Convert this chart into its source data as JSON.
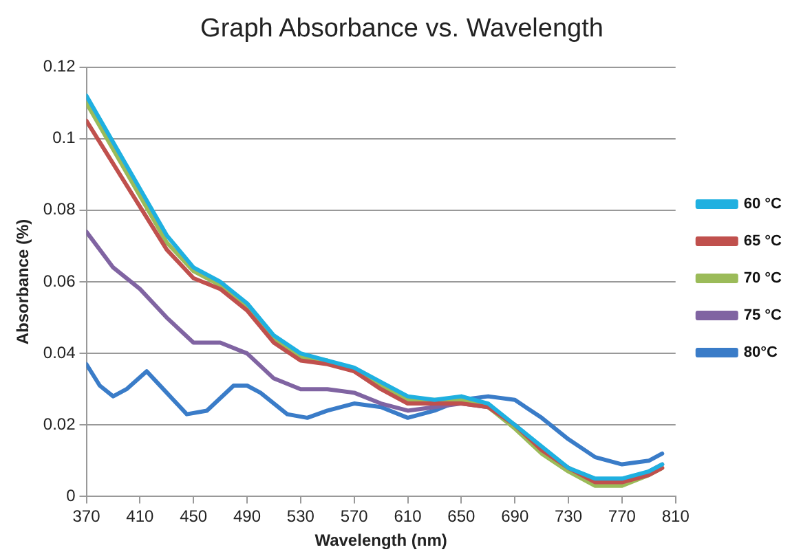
{
  "chart_data": {
    "type": "line",
    "title": "Graph Absorbance vs. Wavelength",
    "xlabel": "Wavelength (nm)",
    "ylabel": "Absorbance (%)",
    "x": [
      370,
      390,
      410,
      430,
      450,
      470,
      490,
      510,
      530,
      550,
      570,
      590,
      610,
      630,
      650,
      670,
      690,
      710,
      730,
      750,
      770,
      790,
      800
    ],
    "series": [
      {
        "name": "60 °C",
        "color": "#1fb0e0",
        "values": [
          0.112,
          0.099,
          0.086,
          0.073,
          0.064,
          0.06,
          0.054,
          0.045,
          0.04,
          0.038,
          0.036,
          0.032,
          0.028,
          0.027,
          0.028,
          0.026,
          0.02,
          0.014,
          0.008,
          0.005,
          0.005,
          0.007,
          0.009
        ]
      },
      {
        "name": "65 °C",
        "color": "#c0504d",
        "values": [
          0.105,
          0.093,
          0.081,
          0.069,
          0.061,
          0.058,
          0.052,
          0.043,
          0.038,
          0.037,
          0.035,
          0.03,
          0.026,
          0.026,
          0.026,
          0.025,
          0.02,
          0.013,
          0.008,
          0.004,
          0.004,
          0.006,
          0.008
        ]
      },
      {
        "name": "70 °C",
        "color": "#9bbb59",
        "values": [
          0.11,
          0.097,
          0.084,
          0.071,
          0.063,
          0.059,
          0.053,
          0.044,
          0.039,
          0.038,
          0.035,
          0.031,
          0.027,
          0.027,
          0.027,
          0.025,
          0.019,
          0.012,
          0.007,
          0.003,
          0.003,
          0.006,
          0.008
        ]
      },
      {
        "name": "75 °C",
        "color": "#8064a2",
        "values": [
          0.074,
          0.064,
          0.058,
          0.05,
          0.043,
          0.043,
          0.04,
          0.033,
          0.03,
          0.03,
          0.029,
          0.026,
          0.024,
          0.025,
          0.026,
          0.025,
          0.02,
          0.013,
          0.008,
          0.004,
          0.004,
          0.007,
          0.009
        ]
      },
      {
        "name": "80°C",
        "color": "#3a7cc8",
        "x": [
          370,
          380,
          390,
          400,
          415,
          430,
          445,
          460,
          480,
          490,
          500,
          520,
          535,
          550,
          570,
          590,
          610,
          630,
          650,
          670,
          690,
          710,
          730,
          750,
          770,
          790,
          800
        ],
        "values": [
          0.037,
          0.031,
          0.028,
          0.03,
          0.035,
          0.029,
          0.023,
          0.024,
          0.031,
          0.031,
          0.029,
          0.023,
          0.022,
          0.024,
          0.026,
          0.025,
          0.022,
          0.024,
          0.027,
          0.028,
          0.027,
          0.022,
          0.016,
          0.011,
          0.009,
          0.01,
          0.012
        ]
      }
    ],
    "xlim": [
      370,
      810
    ],
    "xticks": [
      370,
      410,
      450,
      490,
      530,
      570,
      610,
      650,
      690,
      730,
      770,
      810
    ],
    "ylim": [
      0,
      0.12
    ],
    "yticks": [
      0,
      0.02,
      0.04,
      0.06,
      0.08,
      0.1,
      0.12
    ],
    "grid": "y",
    "legend": "right",
    "marker": "none",
    "line_style": "solid"
  }
}
